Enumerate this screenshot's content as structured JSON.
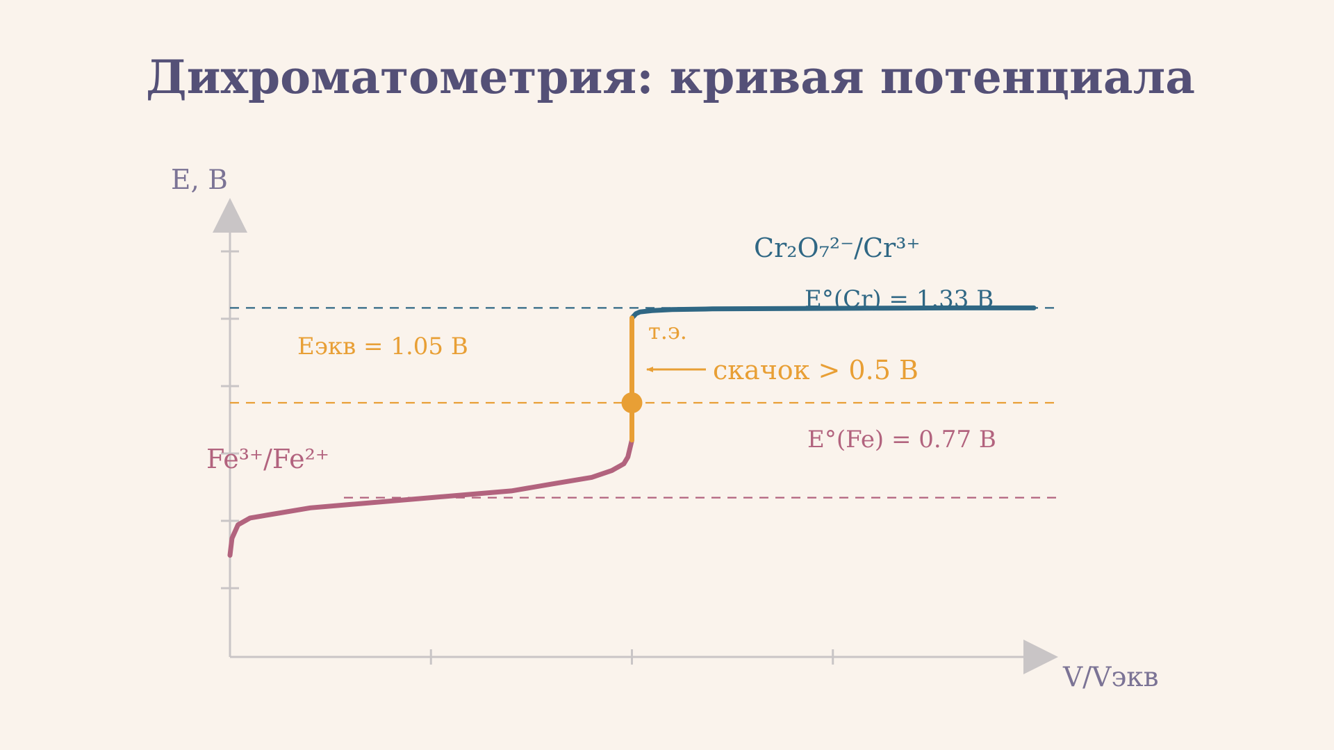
{
  "title": "Дихроматометрия: кривая потенциала",
  "chart_data": {
    "type": "line",
    "title": "Дихроматометрия: кривая потенциала",
    "xlabel": "V/Vэкв",
    "ylabel": "E, В",
    "xlim": [
      0,
      2
    ],
    "ylim": [
      0.3,
      1.55
    ],
    "grid": false,
    "series": [
      {
        "name": "Fe³⁺/Fe²⁺",
        "color": "#b2637e",
        "x": [
          0.0,
          0.005,
          0.02,
          0.05,
          0.1,
          0.2,
          0.3,
          0.4,
          0.5,
          0.6,
          0.7,
          0.8,
          0.9,
          0.95,
          0.98,
          0.99,
          1.0
        ],
        "y": [
          0.6,
          0.65,
          0.69,
          0.71,
          0.72,
          0.74,
          0.75,
          0.76,
          0.77,
          0.78,
          0.79,
          0.81,
          0.83,
          0.85,
          0.87,
          0.89,
          0.94
        ]
      },
      {
        "name": "Cr₂O₇²⁻/Cr³⁺",
        "color": "#2f6784",
        "x": [
          1.0,
          1.01,
          1.02,
          1.05,
          1.1,
          1.2,
          1.4,
          1.6,
          1.8,
          2.0
        ],
        "y": [
          1.3,
          1.313,
          1.318,
          1.322,
          1.325,
          1.327,
          1.328,
          1.329,
          1.33,
          1.33
        ]
      },
      {
        "name": "скачок",
        "color": "#e89f35",
        "x": [
          1.0,
          1.0
        ],
        "y": [
          0.94,
          1.3
        ]
      }
    ],
    "reference_lines": [
      {
        "label": "E°(Cr) = 1.33 В",
        "y": 1.33,
        "color": "#2f6784"
      },
      {
        "label": "Eэкв = 1.05 В",
        "y": 1.05,
        "color": "#e89f35"
      },
      {
        "label": "E°(Fe) = 0.77 В",
        "y": 0.77,
        "color": "#b2637e"
      }
    ],
    "equivalence_point": {
      "x": 1.0,
      "y": 1.05,
      "color": "#e89f35"
    },
    "annotations": {
      "cr_couple": "Cr₂O₇²⁻/Cr³⁺",
      "fe_couple": "Fe³⁺/Fe²⁺",
      "te": "т.э.",
      "jump": "скачок > 0.5 В"
    },
    "axis_color": "#c9c5c6",
    "label_color": "#7b7395"
  }
}
